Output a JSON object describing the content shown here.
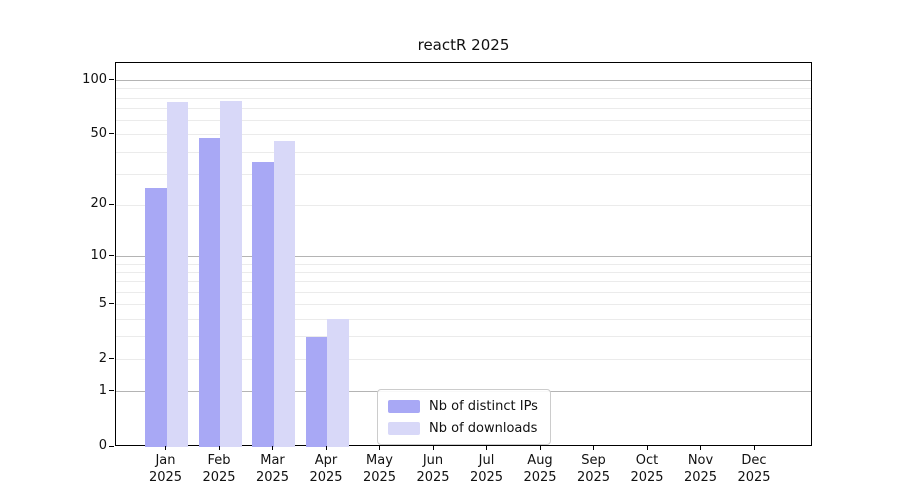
{
  "chart_data": {
    "type": "bar",
    "title": "reactR 2025",
    "year": "2025",
    "categories": [
      "Jan",
      "Feb",
      "Mar",
      "Apr",
      "May",
      "Jun",
      "Jul",
      "Aug",
      "Sep",
      "Oct",
      "Nov",
      "Dec"
    ],
    "series": [
      {
        "name": "Nb of distinct IPs",
        "color": "#a8a8f5",
        "values": [
          25,
          48,
          35,
          3,
          null,
          null,
          null,
          null,
          null,
          null,
          null,
          null
        ]
      },
      {
        "name": "Nb of downloads",
        "color": "#d8d8f8",
        "values": [
          76,
          77,
          46,
          4,
          null,
          null,
          null,
          null,
          null,
          null,
          null,
          null
        ]
      }
    ],
    "xlabel": "",
    "ylabel": "",
    "yscale": "log1p",
    "ylim": [
      0,
      125
    ],
    "yticks": [
      0,
      1,
      2,
      5,
      10,
      20,
      50,
      100
    ],
    "gridlines": {
      "major": [
        1,
        10,
        100
      ],
      "minor": [
        2,
        3,
        4,
        5,
        6,
        7,
        8,
        9,
        20,
        30,
        40,
        50,
        60,
        70,
        80,
        90
      ]
    },
    "grid": "horizontal",
    "legend_position": "bottom-center-left"
  }
}
